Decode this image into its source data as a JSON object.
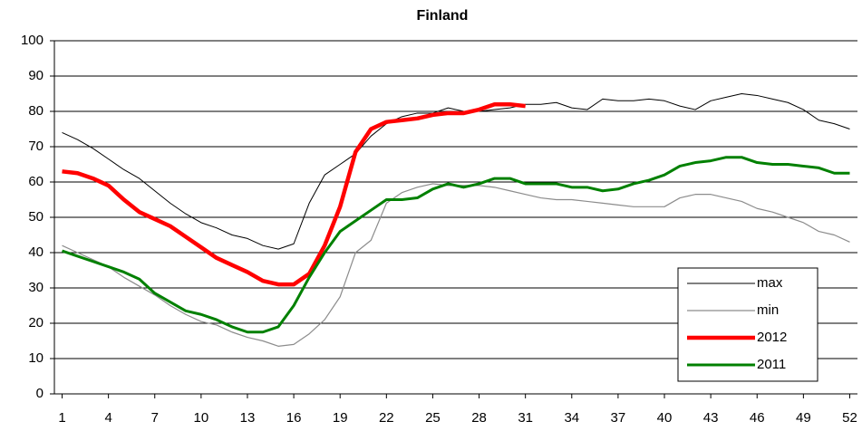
{
  "chart_data": {
    "type": "line",
    "title": "Finland",
    "x": [
      1,
      2,
      3,
      4,
      5,
      6,
      7,
      8,
      9,
      10,
      11,
      12,
      13,
      14,
      15,
      16,
      17,
      18,
      19,
      20,
      21,
      22,
      23,
      24,
      25,
      26,
      27,
      28,
      29,
      30,
      31,
      32,
      33,
      34,
      35,
      36,
      37,
      38,
      39,
      40,
      41,
      42,
      43,
      44,
      45,
      46,
      47,
      48,
      49,
      50,
      51,
      52
    ],
    "xlim": [
      0.5,
      52.5
    ],
    "xticks": [
      1,
      4,
      7,
      10,
      13,
      16,
      19,
      22,
      25,
      28,
      31,
      34,
      37,
      40,
      43,
      46,
      49,
      52
    ],
    "ylim": [
      0,
      100
    ],
    "yticks": [
      0,
      10,
      20,
      30,
      40,
      50,
      60,
      70,
      80,
      90,
      100
    ],
    "grid": true,
    "legend": "lower right",
    "series": [
      {
        "name": "max",
        "color": "#000000",
        "width": 1,
        "values": [
          74,
          72,
          69.5,
          66.5,
          63.5,
          61,
          57.5,
          54,
          51,
          48.5,
          47,
          45,
          44,
          42,
          41,
          42.5,
          54,
          62,
          65,
          68,
          73,
          76.5,
          78.5,
          79.5,
          79.5,
          81,
          80,
          80,
          80.5,
          81,
          82,
          82,
          82.5,
          81,
          80.5,
          83.5,
          83,
          83,
          83.5,
          83,
          81.5,
          80.5,
          83,
          84,
          85,
          84.5,
          83.5,
          82.5,
          80.5,
          77.5,
          76.5,
          75
        ]
      },
      {
        "name": "min",
        "color": "#8c8c8c",
        "width": 1.2,
        "values": [
          42,
          40,
          38,
          36,
          33,
          30.5,
          28,
          25,
          22.5,
          20.5,
          19.5,
          17.5,
          16,
          15,
          13.5,
          14,
          17,
          21,
          27.5,
          40,
          43.5,
          54,
          57,
          58.5,
          59.5,
          59,
          59,
          59,
          58.5,
          57.5,
          56.5,
          55.5,
          55,
          55,
          54.5,
          54,
          53.5,
          53,
          53,
          53,
          55.5,
          56.5,
          56.5,
          55.5,
          54.5,
          52.5,
          51.5,
          50,
          48.5,
          46,
          45,
          43
        ]
      },
      {
        "name": "2012",
        "color": "#ff0000",
        "width": 4.5,
        "values": [
          63,
          62.5,
          61,
          59,
          55,
          51.5,
          49.5,
          47.5,
          44.5,
          41.5,
          38.5,
          36.5,
          34.5,
          32,
          31,
          31,
          34,
          42,
          53,
          68.5,
          75,
          77,
          77.5,
          78,
          79,
          79.5,
          79.5,
          80.5,
          82,
          82,
          81.5,
          null,
          null,
          null,
          null,
          null,
          null,
          null,
          null,
          null,
          null,
          null,
          null,
          null,
          null,
          null,
          null,
          null,
          null,
          null,
          null,
          null
        ]
      },
      {
        "name": "2011",
        "color": "#008000",
        "width": 3,
        "values": [
          40.5,
          39,
          37.5,
          36,
          34.5,
          32.5,
          28.5,
          26,
          23.5,
          22.5,
          21,
          19,
          17.5,
          17.5,
          19,
          25,
          33,
          40,
          46,
          49,
          52,
          55,
          55,
          55.5,
          58,
          59.5,
          58.5,
          59.5,
          61,
          61,
          59.5,
          59.5,
          59.5,
          58.5,
          58.5,
          57.5,
          58,
          59.5,
          60.5,
          62,
          64.5,
          65.5,
          66,
          67,
          67,
          65.5,
          65,
          65,
          64.5,
          64,
          62.5,
          62.5
        ]
      }
    ]
  }
}
